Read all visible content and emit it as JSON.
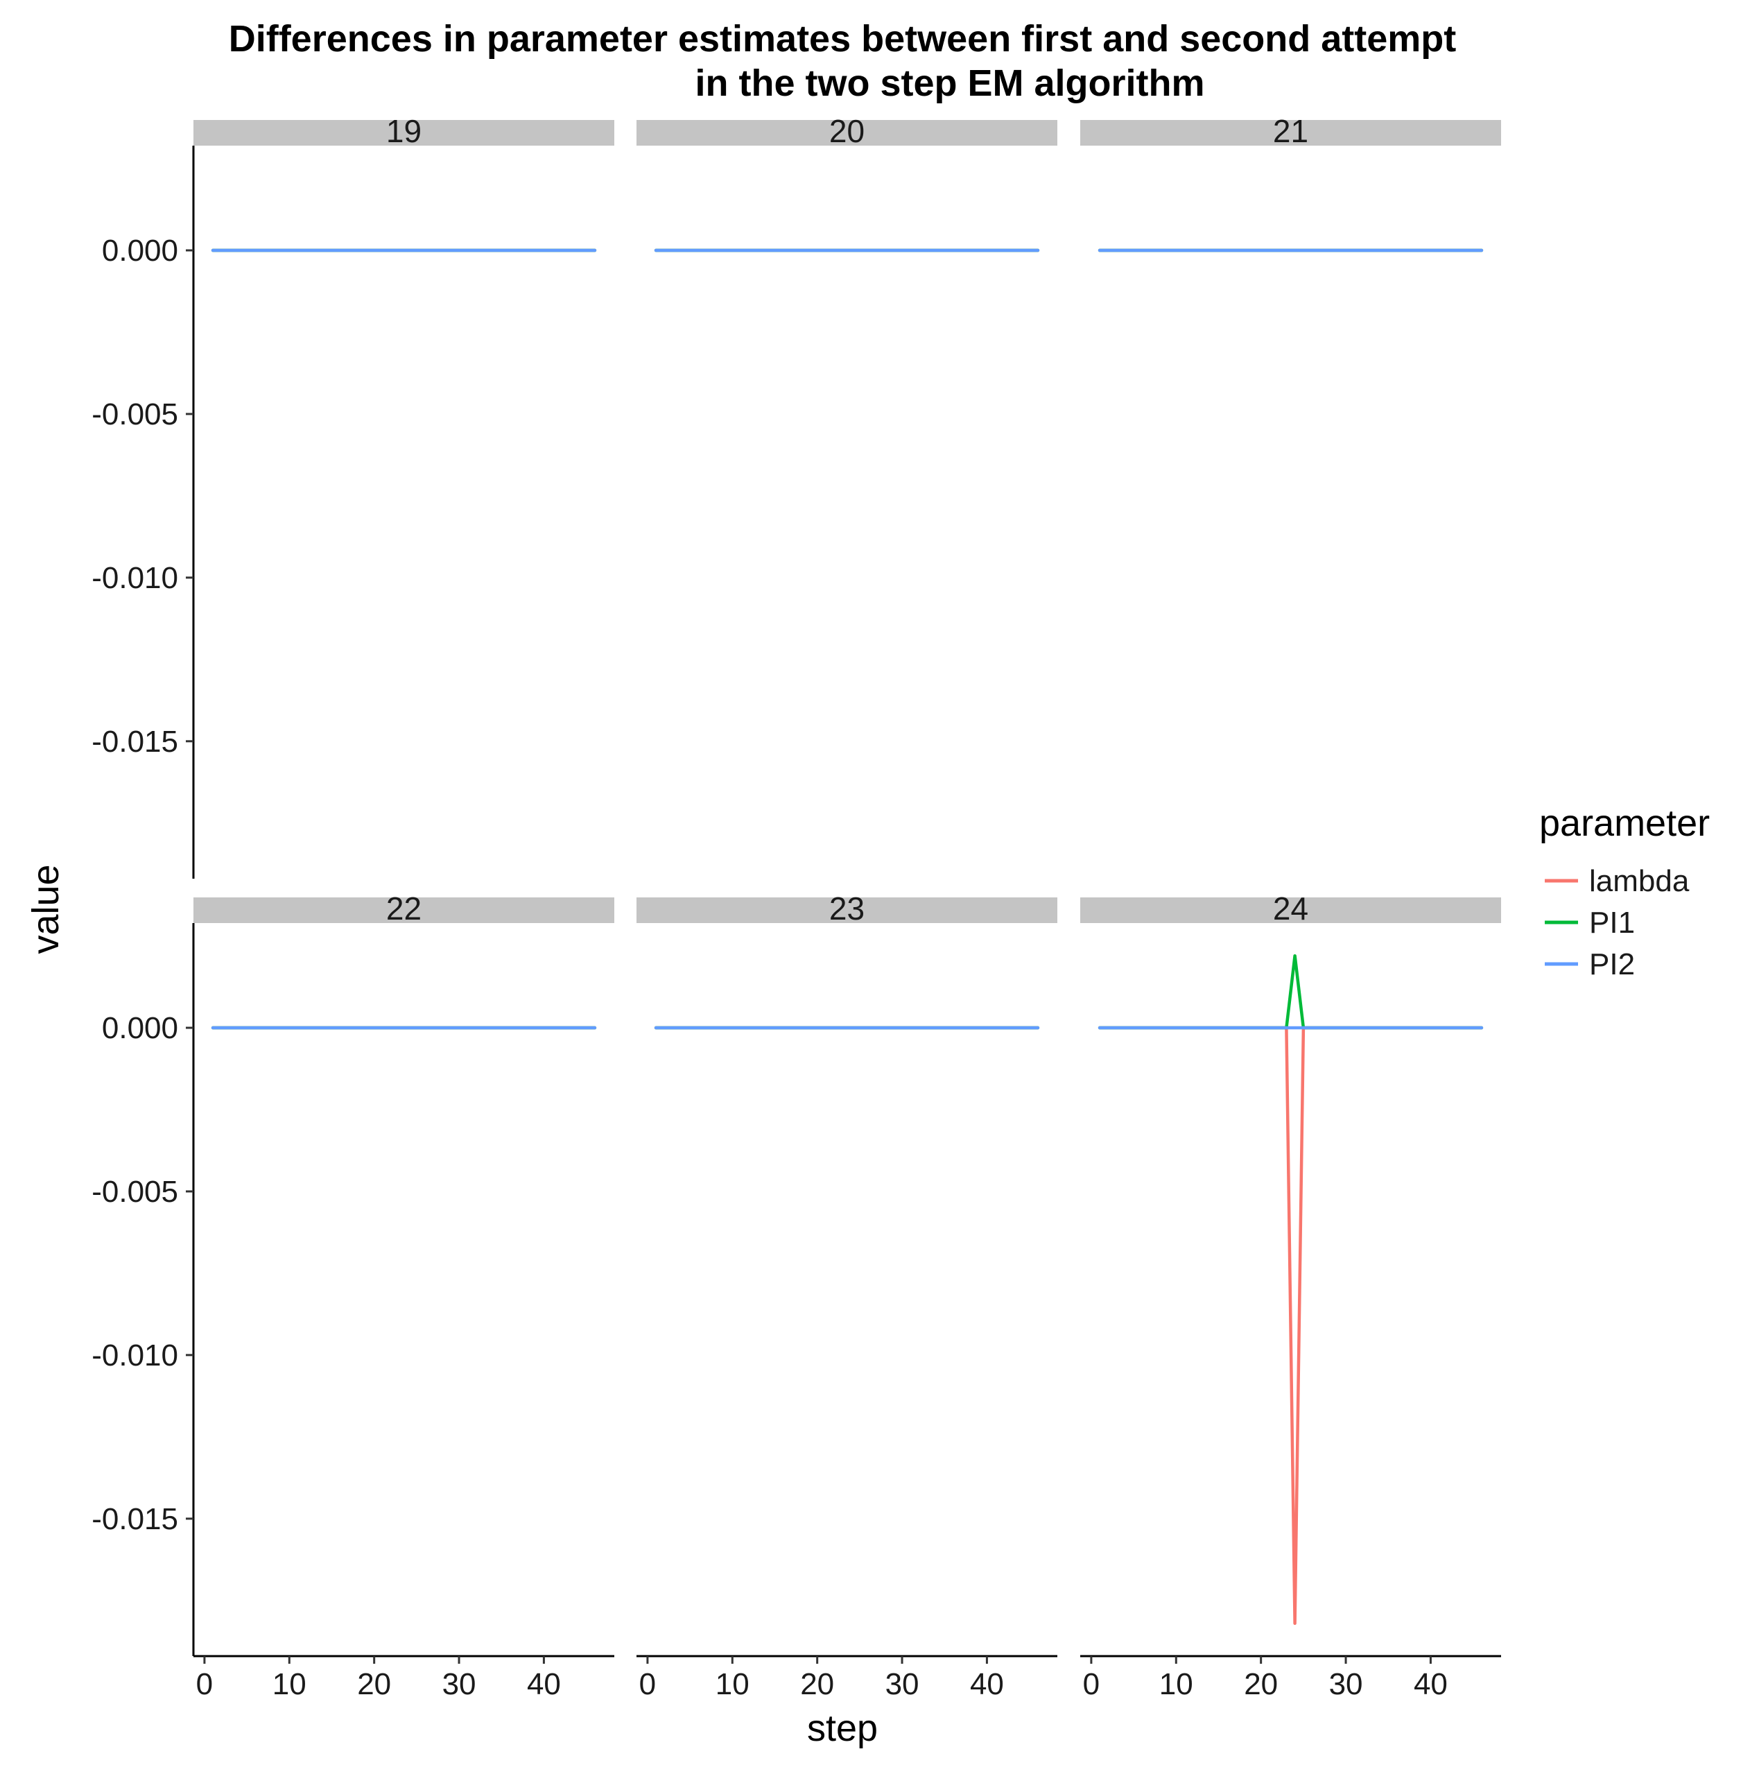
{
  "chart_data": {
    "type": "line",
    "title": "Differences in parameter estimates between first and second attempt\nin the two step EM algorithm",
    "xlabel": "step",
    "ylabel": "value",
    "xlim": [
      -1.3,
      48.3
    ],
    "ylim": [
      -0.0192,
      0.0032
    ],
    "x_ticks": [
      0,
      10,
      20,
      30,
      40
    ],
    "y_ticks": [
      0.0,
      -0.005,
      -0.01,
      -0.015
    ],
    "x_tick_labels": [
      "0",
      "10",
      "20",
      "30",
      "40"
    ],
    "y_tick_labels": [
      "0.000",
      "-0.005",
      "-0.010",
      "-0.015"
    ],
    "grid": false,
    "legend": {
      "title": "parameter",
      "position": "right",
      "entries": [
        "lambda",
        "PI1",
        "PI2"
      ]
    },
    "colors": {
      "lambda": "#F8766D",
      "PI1": "#00BA38",
      "PI2": "#619CFF",
      "strip": "#C4C4C4"
    },
    "facets": [
      {
        "label": "19",
        "series": [
          {
            "name": "lambda",
            "x": [
              1,
              46
            ],
            "y": [
              0,
              0
            ]
          },
          {
            "name": "PI1",
            "x": [
              1,
              46
            ],
            "y": [
              0,
              0
            ]
          },
          {
            "name": "PI2",
            "x": [
              1,
              46
            ],
            "y": [
              0,
              0
            ]
          }
        ]
      },
      {
        "label": "20",
        "series": [
          {
            "name": "lambda",
            "x": [
              1,
              46
            ],
            "y": [
              0,
              0
            ]
          },
          {
            "name": "PI1",
            "x": [
              1,
              46
            ],
            "y": [
              0,
              0
            ]
          },
          {
            "name": "PI2",
            "x": [
              1,
              46
            ],
            "y": [
              0,
              0
            ]
          }
        ]
      },
      {
        "label": "21",
        "series": [
          {
            "name": "lambda",
            "x": [
              1,
              46
            ],
            "y": [
              0,
              0
            ]
          },
          {
            "name": "PI1",
            "x": [
              1,
              46
            ],
            "y": [
              0,
              0
            ]
          },
          {
            "name": "PI2",
            "x": [
              1,
              46
            ],
            "y": [
              0,
              0
            ]
          }
        ]
      },
      {
        "label": "22",
        "series": [
          {
            "name": "lambda",
            "x": [
              1,
              46
            ],
            "y": [
              0,
              0
            ]
          },
          {
            "name": "PI1",
            "x": [
              1,
              46
            ],
            "y": [
              0,
              0
            ]
          },
          {
            "name": "PI2",
            "x": [
              1,
              46
            ],
            "y": [
              0,
              0
            ]
          }
        ]
      },
      {
        "label": "23",
        "series": [
          {
            "name": "lambda",
            "x": [
              1,
              46
            ],
            "y": [
              0,
              0
            ]
          },
          {
            "name": "PI1",
            "x": [
              1,
              46
            ],
            "y": [
              0,
              0
            ]
          },
          {
            "name": "PI2",
            "x": [
              1,
              46
            ],
            "y": [
              0,
              0
            ]
          }
        ]
      },
      {
        "label": "24",
        "series": [
          {
            "name": "lambda",
            "x": [
              1,
              23,
              24,
              25,
              46
            ],
            "y": [
              0,
              0,
              -0.0182,
              0,
              0
            ]
          },
          {
            "name": "PI1",
            "x": [
              1,
              23,
              24,
              25,
              46
            ],
            "y": [
              0,
              0,
              0.0022,
              0,
              0
            ]
          },
          {
            "name": "PI2",
            "x": [
              1,
              46
            ],
            "y": [
              0,
              0
            ]
          }
        ]
      }
    ]
  }
}
